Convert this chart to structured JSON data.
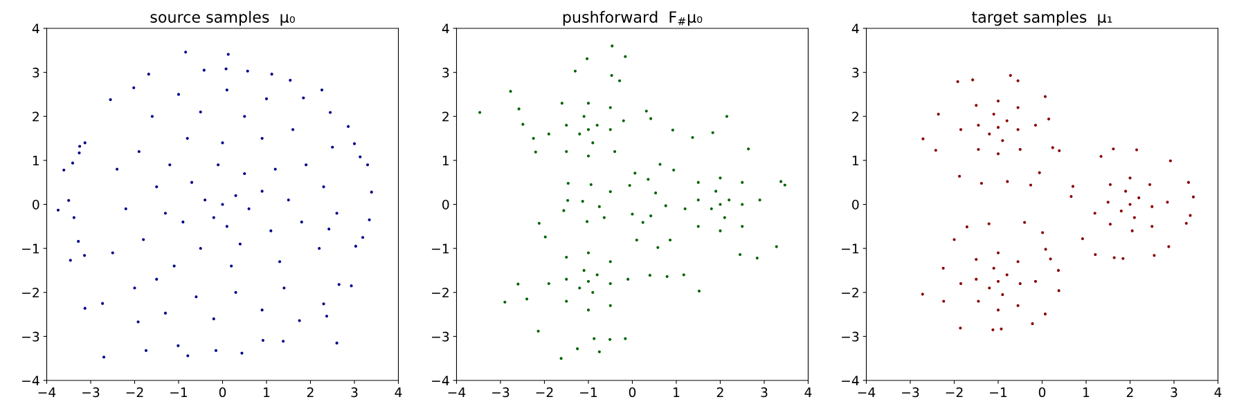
{
  "chart_data": [
    {
      "type": "scatter",
      "title": "source samples  μ₀",
      "color": "#00008b",
      "marker": "circle",
      "xlim": [
        -4,
        4
      ],
      "ylim": [
        -4,
        4
      ],
      "xticks": [
        -4,
        -3,
        -2,
        -1,
        0,
        1,
        2,
        3,
        4
      ],
      "yticks": [
        -4,
        -3,
        -2,
        -1,
        0,
        1,
        2,
        3,
        4
      ],
      "x": [
        -0.84,
        0.13,
        0.08,
        -0.42,
        0.57,
        -1.68,
        1.12,
        1.54,
        2.26,
        -2.02,
        -2.55,
        2.86,
        3.0,
        3.13,
        3.3,
        3.39,
        3.34,
        3.19,
        3.03,
        2.93,
        2.6,
        2.65,
        2.37,
        1.75,
        1.38,
        0.92,
        0.44,
        -0.15,
        -0.79,
        -1.01,
        -1.74,
        -2.7,
        -3.13,
        -2.73,
        -3.46,
        -3.5,
        -3.74,
        -3.61,
        -3.41,
        -3.25,
        -3.13,
        -3.26,
        -3.38,
        -3.28,
        -3.14,
        -1.92,
        -1.3,
        2.3,
        2.42,
        2.45,
        1.84,
        0.0,
        0.3,
        -0.4,
        0.1,
        -0.2,
        0.6,
        -0.7,
        0.5,
        -0.1,
        0.9,
        -0.9,
        0.4,
        -0.5,
        1.1,
        1.2,
        -1.2,
        -1.3,
        0.0,
        0.2,
        1.5,
        -1.5,
        -0.8,
        0.9,
        1.3,
        -1.1,
        -1.8,
        1.8,
        1.9,
        -1.9,
        0.5,
        -0.5,
        0.3,
        -0.6,
        1.4,
        -1.5,
        2.2,
        -2.2,
        2.3,
        1.6,
        -1.6,
        -2.4,
        2.6,
        -2.5,
        0.9,
        -1.0,
        1.0,
        -0.2,
        0.1,
        2.5,
        -2.0
      ],
      "values": [
        3.46,
        3.41,
        3.08,
        3.05,
        3.03,
        2.96,
        2.96,
        2.82,
        2.6,
        2.65,
        2.38,
        1.77,
        1.38,
        1.08,
        0.9,
        0.28,
        -0.35,
        -0.75,
        -0.95,
        -1.85,
        -3.15,
        -1.82,
        -2.54,
        -2.64,
        -3.11,
        -3.09,
        -3.38,
        -3.32,
        -3.44,
        -3.21,
        -3.32,
        -3.47,
        -2.36,
        -2.25,
        -1.27,
        0.09,
        -0.13,
        0.78,
        0.94,
        1.32,
        1.4,
        1.17,
        -0.3,
        -0.84,
        -1.16,
        -2.67,
        -2.47,
        -2.26,
        -0.56,
        2.09,
        2.42,
        0.0,
        0.2,
        0.1,
        -0.5,
        -0.3,
        -0.1,
        0.5,
        0.7,
        0.9,
        0.3,
        -0.4,
        -0.9,
        -1.0,
        -0.6,
        0.8,
        0.9,
        -0.2,
        1.4,
        -1.4,
        0.1,
        0.4,
        1.5,
        1.5,
        -1.3,
        -1.4,
        -0.8,
        -0.4,
        0.9,
        1.2,
        2.0,
        2.1,
        -2.0,
        -2.1,
        -1.9,
        -1.7,
        -1.0,
        -0.1,
        0.4,
        1.7,
        2.0,
        0.8,
        -0.2,
        -1.1,
        -2.4,
        2.5,
        2.4,
        -2.6,
        2.6,
        1.3,
        -1.9
      ]
    },
    {
      "type": "scatter",
      "title": "pushforward  F$_{#}$μ₀",
      "color": "#006400",
      "marker": "circle",
      "xlim": [
        -4,
        4
      ],
      "ylim": [
        -4,
        4
      ],
      "xticks": [
        -4,
        -3,
        -2,
        -1,
        0,
        1,
        2,
        3,
        4
      ],
      "yticks": [
        -4,
        -3,
        -2,
        -1,
        0,
        1,
        2,
        3,
        4
      ],
      "x": [
        -0.46,
        -1.03,
        -0.16,
        -3.47,
        -2.77,
        -2.58,
        -2.49,
        -2.25,
        -2.2,
        -1.3,
        -0.47,
        -0.29,
        0.32,
        0.42,
        0.92,
        2.15,
        1.83,
        1.37,
        2.64,
        3.47,
        3.38,
        3.28,
        2.84,
        2.45,
        1.52,
        1.17,
        0.79,
        0.4,
        -2.12,
        -1.98,
        -2.9,
        -2.6,
        -2.4,
        -2.14,
        -1.25,
        -1.62,
        -0.75,
        -0.51,
        -0.16,
        -0.87,
        0.06,
        -0.06,
        0.36,
        0.53,
        -0.5,
        -1.47,
        -1.13,
        -0.75,
        -1.56,
        -0.64,
        0.0,
        0.24,
        0.42,
        0.63,
        0.94,
        0.76,
        0.86,
        0.58,
        0.1,
        -1.03,
        -0.94,
        -1.46,
        -1.0,
        -0.8,
        -1.2,
        -0.9,
        -1.1,
        -0.5,
        -1.5,
        -1.0,
        -1.0,
        -0.5,
        -1.5,
        -0.4,
        -1.6,
        -1.9,
        -0.2,
        2.0,
        2.2,
        1.8,
        2.1,
        1.9,
        2.5,
        1.5,
        2.0,
        2.0,
        2.5,
        1.5,
        2.5,
        1.5,
        1.2,
        2.9,
        -1.0,
        -0.8,
        -1.2,
        -0.9,
        -1.1,
        -0.5,
        -1.5,
        -1.0,
        -1.0,
        -0.5,
        -1.5,
        -0.5,
        -1.5,
        -1.9,
        -0.1
      ],
      "values": [
        3.6,
        3.31,
        3.36,
        2.09,
        2.57,
        2.17,
        1.82,
        1.5,
        1.19,
        3.03,
        2.93,
        2.81,
        2.12,
        1.95,
        1.69,
        2.0,
        1.63,
        1.52,
        1.26,
        0.44,
        0.52,
        -0.96,
        -1.22,
        -1.14,
        -1.97,
        -1.6,
        -1.64,
        -1.61,
        -0.43,
        -0.74,
        -2.22,
        -1.81,
        -2.15,
        -2.88,
        -3.28,
        -3.5,
        -3.35,
        -3.07,
        -3.05,
        -3.05,
        0.71,
        0.43,
        0.57,
        0.26,
        0.29,
        0.09,
        0.07,
        -0.05,
        -0.14,
        -0.3,
        -0.22,
        -0.41,
        -0.26,
        0.91,
        0.78,
        -0.03,
        -0.81,
        -0.98,
        -0.81,
        -0.39,
        0.45,
        0.48,
        1.7,
        1.8,
        1.6,
        1.4,
        2.0,
        1.7,
        1.8,
        2.3,
        1.1,
        2.2,
        1.2,
        1.2,
        2.3,
        1.6,
        1.9,
        0.0,
        0.1,
        -0.1,
        -0.3,
        0.3,
        0.0,
        0.1,
        0.6,
        -0.6,
        0.5,
        -0.5,
        -0.5,
        0.5,
        -0.1,
        0.1,
        -1.75,
        -1.6,
        -1.9,
        -2.0,
        -1.5,
        -1.8,
        -1.7,
        -1.1,
        -2.4,
        -1.3,
        -2.2,
        -2.3,
        -1.2,
        -1.8,
        -1.7
      ]
    },
    {
      "type": "scatter",
      "title": "target samples  μ₁",
      "color": "#8b0000",
      "marker": "circle",
      "xlim": [
        -4,
        4
      ],
      "ylim": [
        -4,
        4
      ],
      "xticks": [
        -4,
        -3,
        -2,
        -1,
        0,
        1,
        2,
        3,
        4
      ],
      "yticks": [
        -4,
        -3,
        -2,
        -1,
        0,
        1,
        2,
        3,
        4
      ],
      "x": [
        -2.71,
        -2.42,
        -2.36,
        -1.92,
        -1.58,
        -0.72,
        -0.55,
        0.07,
        0.15,
        0.39,
        0.24,
        -0.26,
        -1.38,
        -1.88,
        -0.06,
        -0.79,
        0.66,
        0.7,
        0.92,
        1.21,
        1.64,
        1.84,
        2.55,
        2.88,
        3.28,
        3.37,
        3.44,
        3.33,
        2.92,
        2.15,
        1.62,
        1.34,
        -0.4,
        0.01,
        -1.21,
        -1.71,
        -2.0,
        -2.72,
        -2.24,
        -1.86,
        -1.12,
        -0.93,
        -0.22,
        0.07,
        0.38,
        0.37,
        0.19,
        0.08,
        -2.25,
        -1.0,
        -0.8,
        -1.2,
        -0.9,
        -1.1,
        -0.55,
        -1.45,
        -1.0,
        -1.0,
        -0.55,
        -1.45,
        -0.5,
        -1.5,
        -1.85,
        -0.15,
        2.0,
        2.2,
        1.8,
        2.1,
        1.9,
        2.5,
        1.5,
        2.0,
        2.05,
        2.45,
        1.55,
        2.5,
        1.55,
        1.2,
        2.85,
        -1.0,
        -0.8,
        -1.2,
        -0.9,
        -1.1,
        -0.5,
        -1.5,
        -1.0,
        -1.0,
        -0.55,
        -1.45,
        -0.55,
        -1.5,
        -1.85,
        -0.15
      ],
      "values": [
        1.49,
        1.23,
        2.05,
        2.79,
        2.83,
        2.93,
        2.81,
        2.45,
        1.94,
        1.22,
        1.29,
        0.44,
        0.48,
        0.64,
        0.72,
        0.52,
        0.18,
        0.41,
        -0.78,
        -1.14,
        -1.21,
        -1.23,
        -1.16,
        -0.96,
        -0.43,
        -0.25,
        0.17,
        0.5,
        0.99,
        1.24,
        1.26,
        1.09,
        -0.41,
        -0.64,
        -0.44,
        -0.51,
        -0.8,
        -2.04,
        -2.2,
        -2.81,
        -2.85,
        -2.83,
        -2.71,
        -2.49,
        -1.96,
        -1.5,
        -1.24,
        -1.02,
        -1.45,
        1.75,
        1.9,
        1.6,
        1.45,
        2.05,
        1.7,
        1.8,
        2.35,
        1.15,
        2.2,
        1.25,
        1.25,
        2.25,
        1.7,
        1.8,
        0.0,
        0.15,
        -0.15,
        -0.3,
        0.3,
        -0.05,
        0.05,
        0.6,
        -0.6,
        0.45,
        -0.45,
        -0.5,
        0.45,
        -0.2,
        0.05,
        -1.75,
        -1.6,
        -1.9,
        -2.05,
        -1.45,
        -1.8,
        -1.7,
        -1.1,
        -2.4,
        -1.3,
        -2.2,
        -2.3,
        -1.25,
        -1.8,
        -1.75
      ]
    }
  ]
}
